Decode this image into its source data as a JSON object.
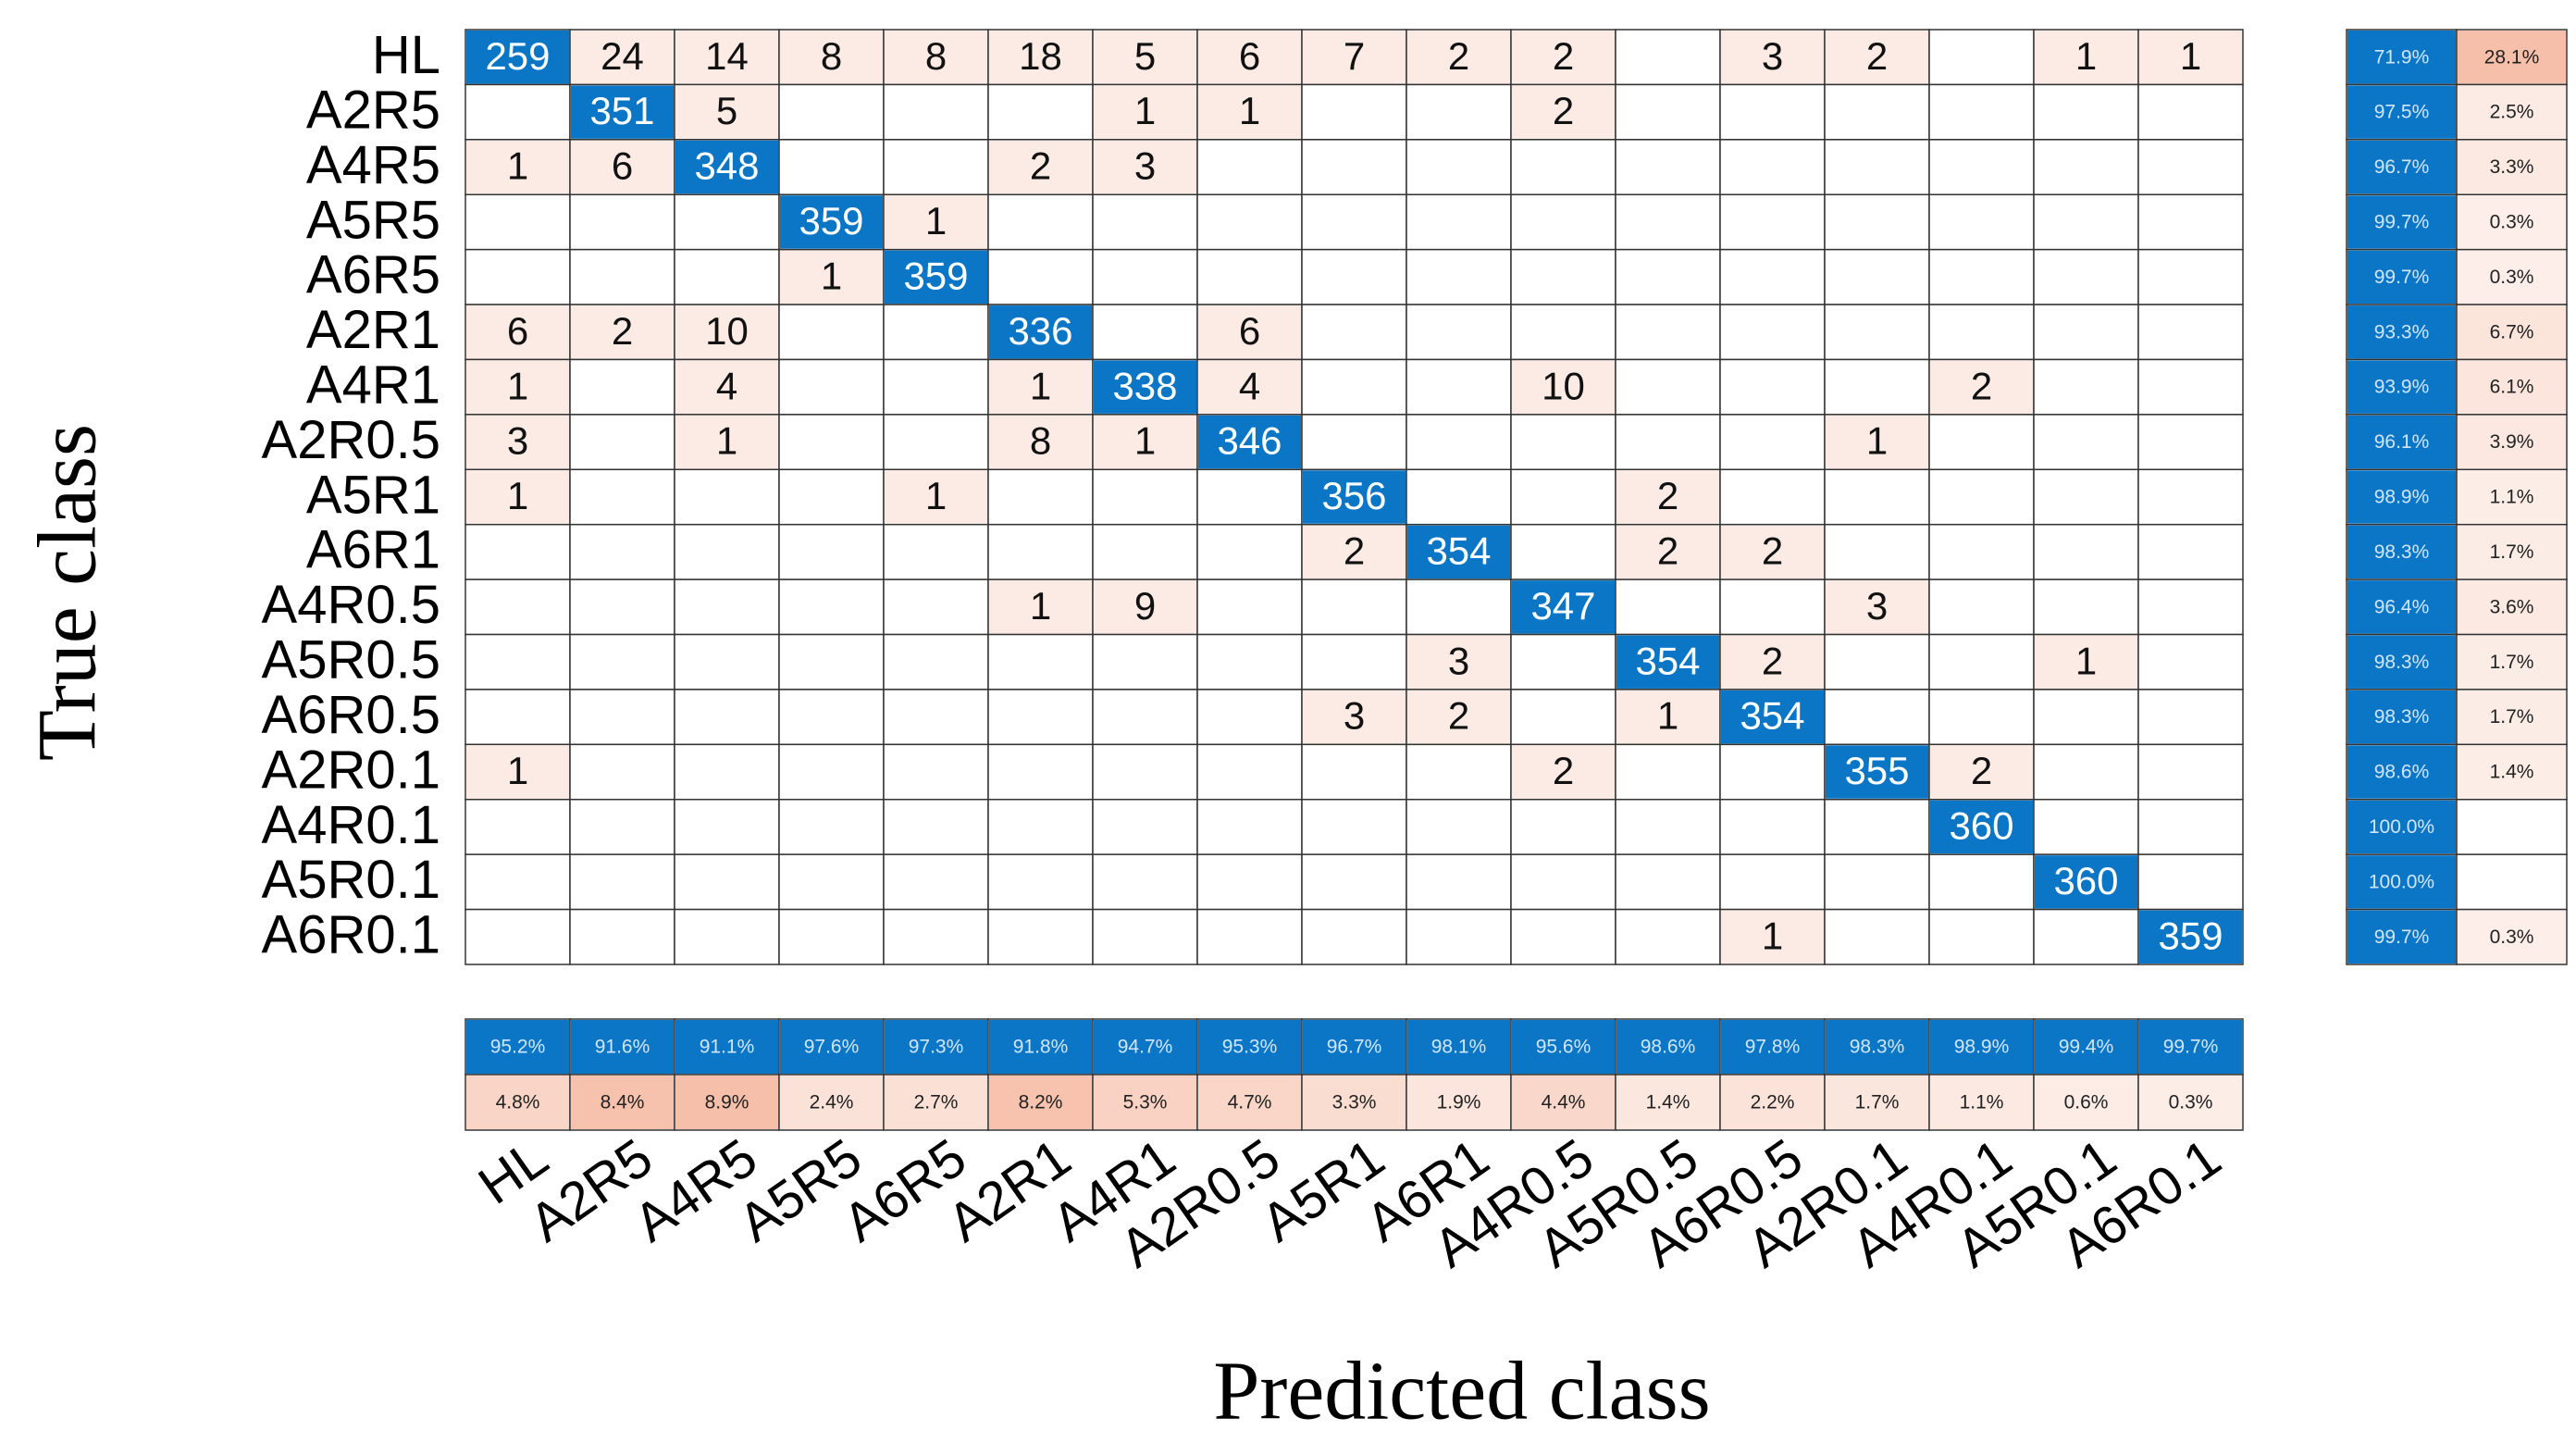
{
  "chart_data": {
    "type": "confusion_matrix",
    "x_label": "Predicted class",
    "y_label": "True class",
    "categories": [
      "HL",
      "A2R5",
      "A4R5",
      "A5R5",
      "A6R5",
      "A2R1",
      "A4R1",
      "A2R0.5",
      "A5R1",
      "A6R1",
      "A4R0.5",
      "A5R0.5",
      "A6R0.5",
      "A2R0.1",
      "A4R0.1",
      "A5R0.1",
      "A6R0.1"
    ],
    "matrix": [
      [
        259,
        24,
        14,
        8,
        8,
        18,
        5,
        6,
        7,
        2,
        2,
        null,
        3,
        2,
        null,
        1,
        1
      ],
      [
        null,
        351,
        5,
        null,
        null,
        null,
        1,
        1,
        null,
        null,
        2,
        null,
        null,
        null,
        null,
        null,
        null
      ],
      [
        1,
        6,
        348,
        null,
        null,
        2,
        3,
        null,
        null,
        null,
        null,
        null,
        null,
        null,
        null,
        null,
        null
      ],
      [
        null,
        null,
        null,
        359,
        1,
        null,
        null,
        null,
        null,
        null,
        null,
        null,
        null,
        null,
        null,
        null,
        null
      ],
      [
        null,
        null,
        null,
        1,
        359,
        null,
        null,
        null,
        null,
        null,
        null,
        null,
        null,
        null,
        null,
        null,
        null
      ],
      [
        6,
        2,
        10,
        null,
        null,
        336,
        null,
        6,
        null,
        null,
        null,
        null,
        null,
        null,
        null,
        null,
        null
      ],
      [
        1,
        null,
        4,
        null,
        null,
        1,
        338,
        4,
        null,
        null,
        10,
        null,
        null,
        null,
        2,
        null,
        null
      ],
      [
        3,
        null,
        1,
        null,
        null,
        8,
        1,
        346,
        null,
        null,
        null,
        null,
        null,
        1,
        null,
        null,
        null
      ],
      [
        1,
        null,
        null,
        null,
        1,
        null,
        null,
        null,
        356,
        null,
        null,
        2,
        null,
        null,
        null,
        null,
        null
      ],
      [
        null,
        null,
        null,
        null,
        null,
        null,
        null,
        null,
        2,
        354,
        null,
        2,
        2,
        null,
        null,
        null,
        null
      ],
      [
        null,
        null,
        null,
        null,
        null,
        1,
        9,
        null,
        null,
        null,
        347,
        null,
        null,
        3,
        null,
        null,
        null
      ],
      [
        null,
        null,
        null,
        null,
        null,
        null,
        null,
        null,
        null,
        3,
        null,
        354,
        2,
        null,
        null,
        1,
        null
      ],
      [
        null,
        null,
        null,
        null,
        null,
        null,
        null,
        null,
        3,
        2,
        null,
        1,
        354,
        null,
        null,
        null,
        null
      ],
      [
        1,
        null,
        null,
        null,
        null,
        null,
        null,
        null,
        null,
        null,
        2,
        null,
        null,
        355,
        2,
        null,
        null
      ],
      [
        null,
        null,
        null,
        null,
        null,
        null,
        null,
        null,
        null,
        null,
        null,
        null,
        null,
        null,
        360,
        null,
        null
      ],
      [
        null,
        null,
        null,
        null,
        null,
        null,
        null,
        null,
        null,
        null,
        null,
        null,
        null,
        null,
        null,
        360,
        null
      ],
      [
        null,
        null,
        null,
        null,
        null,
        null,
        null,
        null,
        null,
        null,
        null,
        null,
        1,
        null,
        null,
        null,
        359
      ]
    ],
    "row_summary": [
      {
        "color": "#0b76c6",
        "values": [
          71.9,
          97.5,
          96.7,
          99.7,
          99.7,
          93.3,
          93.9,
          96.1,
          98.9,
          98.3,
          96.4,
          98.3,
          98.3,
          98.6,
          100.0,
          100.0,
          99.7
        ],
        "value_labels": [
          "71.9%",
          "97.5%",
          "96.7%",
          "99.7%",
          "99.7%",
          "93.3%",
          "93.9%",
          "96.1%",
          "98.9%",
          "98.3%",
          "96.4%",
          "98.3%",
          "98.3%",
          "98.6%",
          "100.0%",
          "100.0%",
          "99.7%"
        ]
      },
      {
        "color": "#f6bfa9",
        "values": [
          28.1,
          2.5,
          3.3,
          0.3,
          0.3,
          6.7,
          6.1,
          3.9,
          1.1,
          1.7,
          3.6,
          1.7,
          1.7,
          1.4,
          null,
          null,
          0.3
        ],
        "value_labels": [
          "28.1%",
          "2.5%",
          "3.3%",
          "0.3%",
          "0.3%",
          "6.7%",
          "6.1%",
          "3.9%",
          "1.1%",
          "1.7%",
          "3.6%",
          "1.7%",
          "1.7%",
          "1.4%",
          null,
          null,
          "0.3%"
        ]
      }
    ],
    "column_summary": [
      {
        "color": "#0b76c6",
        "values": [
          95.2,
          91.6,
          91.1,
          97.6,
          97.3,
          91.8,
          94.7,
          95.3,
          96.7,
          98.1,
          95.6,
          98.6,
          97.8,
          98.3,
          98.9,
          99.4,
          99.7
        ],
        "value_labels": [
          "95.2%",
          "91.6%",
          "91.1%",
          "97.6%",
          "97.3%",
          "91.8%",
          "94.7%",
          "95.3%",
          "96.7%",
          "98.1%",
          "95.6%",
          "98.6%",
          "97.8%",
          "98.3%",
          "98.9%",
          "99.4%",
          "99.7%"
        ]
      },
      {
        "color": "#f6bfa9",
        "values": [
          4.8,
          8.4,
          8.9,
          2.4,
          2.7,
          8.2,
          5.3,
          4.7,
          3.3,
          1.9,
          4.4,
          1.4,
          2.2,
          1.7,
          1.1,
          0.6,
          0.3
        ],
        "value_labels": [
          "4.8%",
          "8.4%",
          "8.9%",
          "2.4%",
          "2.7%",
          "8.2%",
          "5.3%",
          "4.7%",
          "3.3%",
          "1.9%",
          "4.4%",
          "1.4%",
          "2.2%",
          "1.7%",
          "1.1%",
          "0.6%",
          "0.3%"
        ]
      }
    ],
    "diagonal_color": "#0b76c6",
    "off_diagonal_color": "#fcebe5"
  }
}
